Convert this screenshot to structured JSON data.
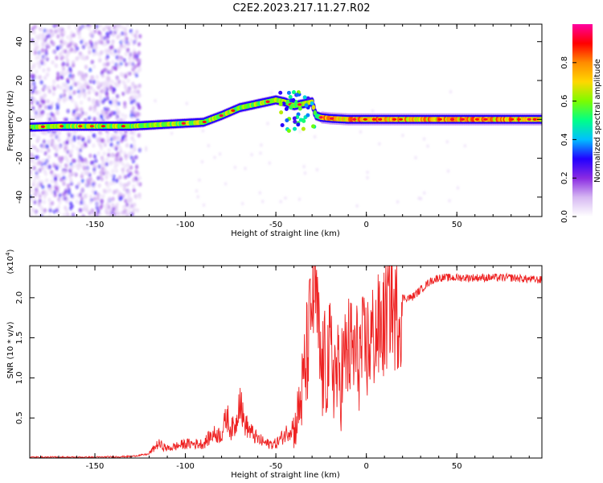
{
  "title": "C2E2.2023.217.11.27.R02",
  "chart_data": [
    {
      "type": "heatmap",
      "xlabel": "Height of straight line (km)",
      "ylabel": "Frequency (Hz)",
      "xlim": [
        -186,
        97
      ],
      "ylim": [
        -50,
        49
      ],
      "xticks": [
        -150,
        -100,
        -50,
        0,
        50
      ],
      "yticks": [
        -40,
        -20,
        0,
        20,
        40
      ],
      "colorbar": {
        "label": "Normalized spectral amplitude",
        "range": [
          0.0,
          1.0
        ],
        "ticks": [
          "0.0",
          "0.2",
          "0.4",
          "0.6",
          "0.8"
        ],
        "colors": [
          "#ffffff",
          "#d6b8f2",
          "#8a2be2",
          "#2200ff",
          "#00bfff",
          "#00ff88",
          "#7cfc00",
          "#ffd700",
          "#ff8c00",
          "#ff0000",
          "#ff00a0"
        ]
      },
      "ridge": {
        "x": [
          -186,
          -170,
          -150,
          -130,
          -120,
          -110,
          -100,
          -90,
          -80,
          -70,
          -60,
          -50,
          -45,
          -40,
          -35,
          -30,
          -28,
          -25,
          -20,
          -10,
          0,
          20,
          50,
          97
        ],
        "y": [
          -4,
          -3.5,
          -3.5,
          -3.5,
          -3,
          -2.5,
          -2,
          -1.5,
          2,
          6,
          8,
          10,
          9,
          7,
          8,
          9,
          2,
          1,
          0.5,
          0,
          0,
          0,
          0,
          0
        ]
      }
    },
    {
      "type": "line",
      "xlabel": "Height of straight line (km)",
      "ylabel": "SNR (10 * v/v)",
      "yscale_label": "(x10",
      "yscale_exp": "4",
      "yscale_close": ")",
      "xlim": [
        -186,
        97
      ],
      "ylim": [
        0,
        2.4
      ],
      "xticks": [
        -150,
        -100,
        -50,
        0,
        50
      ],
      "yticks": [
        "0.5",
        "1.0",
        "1.5",
        "2.0"
      ],
      "series": [
        {
          "color": "#ee2222",
          "x": [
            -186,
            -150,
            -130,
            -120,
            -115,
            -110,
            -100,
            -90,
            -85,
            -80,
            -77,
            -75,
            -72,
            -70,
            -68,
            -65,
            -60,
            -55,
            -50,
            -45,
            -40,
            -38,
            -35,
            -32,
            -30,
            -28,
            -26,
            -25,
            -20,
            -15,
            -10,
            -5,
            0,
            5,
            10,
            14,
            15,
            20,
            25,
            30,
            35,
            40,
            50,
            60,
            70,
            80,
            90,
            97
          ],
          "y": [
            0.01,
            0.01,
            0.02,
            0.05,
            0.15,
            0.1,
            0.15,
            0.15,
            0.25,
            0.25,
            0.45,
            0.3,
            0.35,
            0.7,
            0.4,
            0.3,
            0.2,
            0.15,
            0.15,
            0.25,
            0.35,
            0.6,
            1.0,
            1.6,
            2.1,
            2.2,
            1.5,
            1.2,
            1.4,
            1.1,
            1.5,
            1.4,
            1.5,
            1.7,
            1.8,
            2.2,
            1.9,
            2.0,
            2.0,
            2.1,
            2.2,
            2.25,
            2.25,
            2.25,
            2.25,
            2.25,
            2.23,
            2.22
          ]
        }
      ]
    }
  ]
}
